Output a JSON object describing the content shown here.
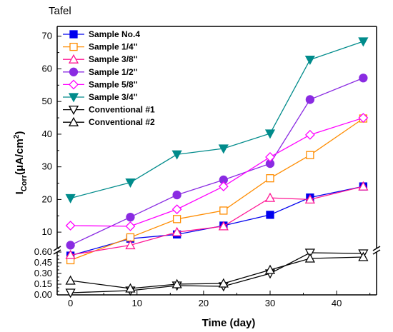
{
  "panel_title": "Tafel",
  "chart_data": {
    "type": "line",
    "title": "Tafel",
    "xlabel": "Time (day)",
    "ylabel": {
      "main": "I",
      "sub": "Corr",
      "unit_open": "(μA/cm",
      "sup": "2",
      "unit_close": ")"
    },
    "xlim": [
      -2,
      46
    ],
    "x_ticks": [
      0,
      10,
      20,
      30,
      40
    ],
    "y_upper": {
      "range": [
        5,
        73
      ],
      "ticks": [
        10,
        20,
        30,
        40,
        50,
        60,
        70
      ]
    },
    "y_lower": {
      "range": [
        0,
        0.6
      ],
      "ticks": [
        "0.00",
        "0.15",
        "0.30",
        "0.45",
        "0.60"
      ],
      "minor_ticks": [
        "0.05",
        "0.10",
        "0.20",
        "0.25",
        "0.35",
        "0.40",
        "0.50",
        "0.55"
      ]
    },
    "axis_break": true,
    "legend_position": "top-left",
    "series": [
      {
        "name": "Sample No.4",
        "color": "#0000ee",
        "marker": "square",
        "filled": true,
        "panel": "upper",
        "x": [
          0,
          9,
          16,
          23,
          30,
          36,
          44
        ],
        "y": [
          2.8,
          8.0,
          9.3,
          12.0,
          15.3,
          20.6,
          24.0
        ]
      },
      {
        "name": "Sample 1/4''",
        "color": "#ff8c00",
        "marker": "square",
        "filled": false,
        "panel": "upper",
        "x": [
          0,
          9,
          16,
          23,
          30,
          36,
          44
        ],
        "y": [
          1.4,
          8.4,
          14.0,
          16.6,
          26.5,
          33.6,
          44.8
        ]
      },
      {
        "name": "Sample 3/8''",
        "color": "#ff1493",
        "marker": "triangle-up",
        "filled": false,
        "panel": "upper",
        "x": [
          0,
          9,
          16,
          23,
          30,
          36,
          44
        ],
        "y": [
          3.0,
          6.0,
          10.0,
          11.8,
          20.5,
          20.0,
          24.0
        ]
      },
      {
        "name": "Sample 1/2''",
        "color": "#8a2be2",
        "marker": "circle",
        "filled": true,
        "panel": "upper",
        "x": [
          0,
          9,
          16,
          23,
          30,
          36,
          44
        ],
        "y": [
          6.0,
          14.6,
          21.4,
          26.0,
          31.0,
          50.6,
          57.2
        ]
      },
      {
        "name": "Sample 5/8''",
        "color": "#ff00ff",
        "marker": "diamond",
        "filled": false,
        "panel": "upper",
        "x": [
          0,
          9,
          16,
          23,
          30,
          36,
          44
        ],
        "y": [
          12.0,
          11.8,
          17.0,
          24.0,
          33.0,
          39.8,
          45.0
        ]
      },
      {
        "name": "Sample 3/4''",
        "color": "#008b8b",
        "marker": "triangle-down",
        "filled": true,
        "panel": "upper",
        "x": [
          0,
          9,
          16,
          23,
          30,
          36,
          44
        ],
        "y": [
          20.4,
          25.2,
          33.8,
          35.6,
          40.2,
          62.8,
          68.4
        ]
      },
      {
        "name": "Conventional #1",
        "color": "#000000",
        "marker": "triangle-down",
        "filled": false,
        "panel": "lower",
        "x": [
          0,
          9,
          16,
          23,
          30,
          36,
          44
        ],
        "y": [
          0.03,
          0.06,
          0.13,
          0.12,
          0.3,
          0.59,
          0.58
        ]
      },
      {
        "name": "Conventional #2",
        "color": "#000000",
        "marker": "triangle-up",
        "filled": false,
        "panel": "lower",
        "x": [
          0,
          9,
          16,
          23,
          30,
          36,
          44
        ],
        "y": [
          0.2,
          0.09,
          0.15,
          0.16,
          0.35,
          0.51,
          0.53
        ]
      }
    ]
  }
}
